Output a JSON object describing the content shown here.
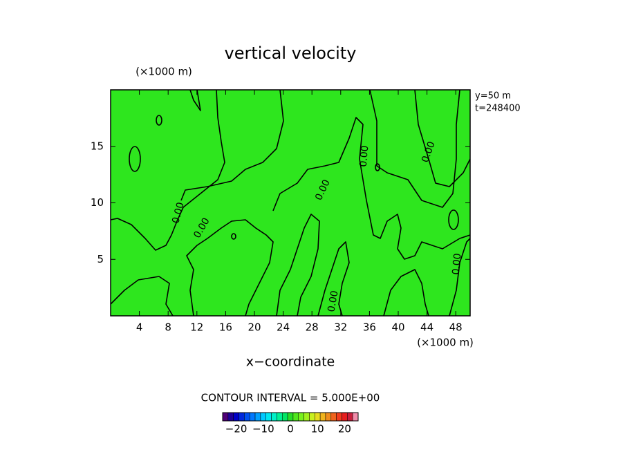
{
  "chart_data": {
    "type": "contour",
    "title": "vertical velocity",
    "x_label": "x−coordinate",
    "x_unit": "(×1000 m)",
    "y_unit": "(×1000 m)",
    "annotations": [
      "y=50 m",
      "t=248400"
    ],
    "contour_interval_text": "CONTOUR INTERVAL = 5.000E+00",
    "contour_level": {
      "value": 0,
      "label": "0.00"
    },
    "field_color": "#2ee61e",
    "line_color": "#000000",
    "xlim": [
      0,
      50
    ],
    "xticks": [
      4,
      8,
      12,
      16,
      20,
      24,
      28,
      32,
      36,
      40,
      44,
      48
    ],
    "ylim": [
      0,
      20
    ],
    "yticks": [
      5,
      10,
      15
    ],
    "colorbar": {
      "lim": [
        -25,
        25
      ],
      "ticks": [
        {
          "value": -20,
          "label": "−20"
        },
        {
          "value": -10,
          "label": "−10"
        },
        0,
        10,
        20
      ],
      "colors": [
        "#500078",
        "#1e0096",
        "#0000c8",
        "#0028dc",
        "#0050f0",
        "#0078ff",
        "#00a0ff",
        "#00c8ff",
        "#00e6f0",
        "#00f0c8",
        "#00f096",
        "#00e664",
        "#28dc28",
        "#50e61e",
        "#78f01e",
        "#a0f01e",
        "#c8f01e",
        "#e6dc1e",
        "#f0b41e",
        "#f08c1e",
        "#f0641e",
        "#f03c1e",
        "#e61e1e",
        "#c81e3c",
        "#f08caa"
      ]
    }
  }
}
